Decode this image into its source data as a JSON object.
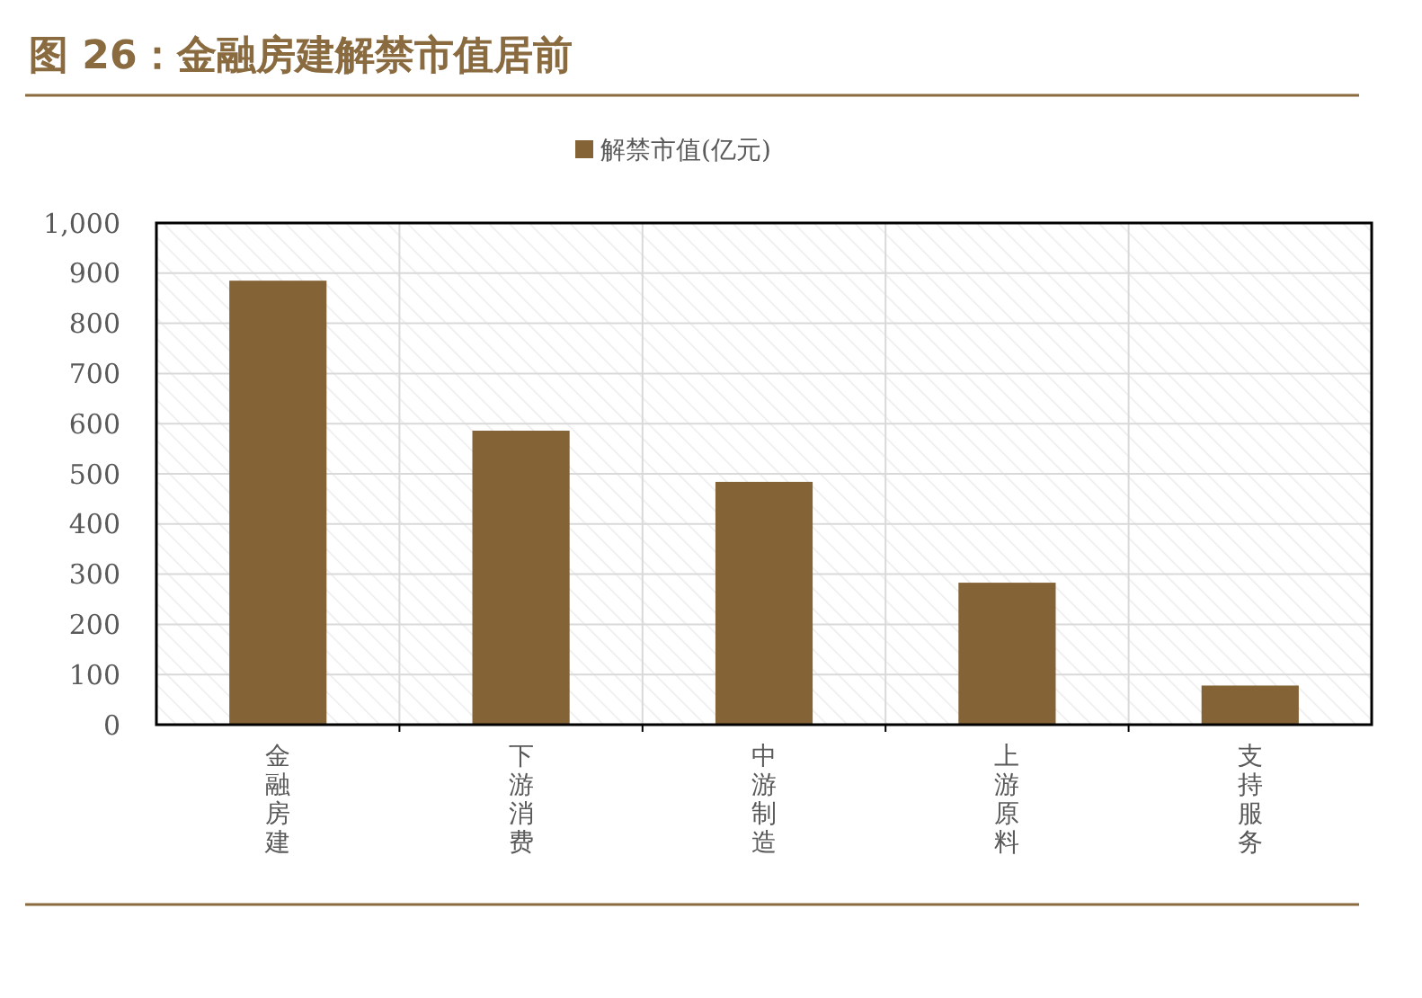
{
  "chart_data": {
    "type": "bar",
    "title": "图 26：金融房建解禁市值居前",
    "categories": [
      "金融房建",
      "下游消费",
      "中游制造",
      "上游原料",
      "支持服务"
    ],
    "series": [
      {
        "name": "解禁市值(亿元)",
        "color": "#846337",
        "values": [
          885,
          586,
          484,
          283,
          78
        ]
      }
    ],
    "ylim": [
      0,
      1000
    ],
    "yticks": [
      0,
      100,
      200,
      300,
      400,
      500,
      600,
      700,
      800,
      900,
      {
        "value": 1000,
        "label": "1,000"
      }
    ],
    "grid": true,
    "legend": "top"
  }
}
